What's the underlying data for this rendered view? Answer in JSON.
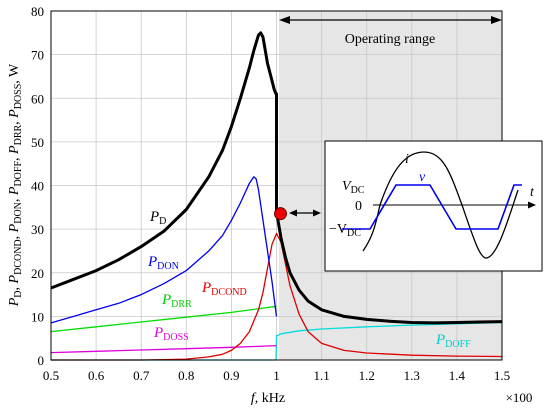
{
  "chart_data": {
    "type": "line",
    "xlabel": {
      "var": "f",
      "unit": ", kHz"
    },
    "xscale_note": "×100",
    "ylabel": {
      "prefix": "P",
      "sub1": "D",
      "sub2": "DCOND",
      "sub3": "DON",
      "sub4": "DOFF",
      "sub5": "DRR",
      "sub6": "DOSS",
      "unit": "W"
    },
    "xlim": [
      0.5,
      1.5
    ],
    "ylim": [
      0,
      80
    ],
    "xticks": [
      "0.5",
      "0.6",
      "0.7",
      "0.8",
      "0.9",
      "1",
      "1.1",
      "1.2",
      "1.3",
      "1.4",
      "1.5"
    ],
    "yticks": [
      "0",
      "10",
      "20",
      "30",
      "40",
      "50",
      "60",
      "70",
      "80"
    ],
    "grid": true,
    "shaded_region": {
      "x": [
        1.0,
        1.5
      ],
      "label": "Operating range"
    },
    "operating_point": {
      "x": 1.0,
      "y": 34
    },
    "series": [
      {
        "name": "P",
        "sub": "D",
        "color": "#000000",
        "x": [
          0.5,
          0.55,
          0.6,
          0.65,
          0.7,
          0.75,
          0.8,
          0.85,
          0.88,
          0.9,
          0.92,
          0.94,
          0.95,
          0.96,
          0.965,
          0.97,
          0.98,
          0.99,
          0.995,
          0.999,
          1.0,
          1.0,
          1.01,
          1.02,
          1.03,
          1.05,
          1.07,
          1.1,
          1.15,
          1.2,
          1.25,
          1.3,
          1.35,
          1.4,
          1.45,
          1.5
        ],
        "y": [
          16.5,
          18.5,
          20.5,
          23,
          26,
          29.5,
          34.5,
          42,
          48,
          53.5,
          60,
          67,
          71,
          74.5,
          75,
          74,
          68,
          64,
          62,
          61,
          61,
          34,
          28,
          23.5,
          20,
          16,
          13.5,
          11.5,
          10,
          9.3,
          8.9,
          8.6,
          8.5,
          8.6,
          8.7,
          8.8
        ]
      },
      {
        "name": "P",
        "sub": "DON",
        "color": "#0000ee",
        "x": [
          0.5,
          0.55,
          0.6,
          0.65,
          0.7,
          0.75,
          0.8,
          0.85,
          0.88,
          0.9,
          0.92,
          0.94,
          0.95,
          0.955,
          0.96,
          0.97,
          0.98,
          0.99,
          1.0
        ],
        "y": [
          8.5,
          10,
          11.5,
          13,
          15,
          17.5,
          20.5,
          25,
          28.5,
          32,
          36,
          40.5,
          42,
          41.5,
          39,
          32,
          25,
          18,
          10
        ]
      },
      {
        "name": "P",
        "sub": "DCOND",
        "color": "#dd0000",
        "x": [
          0.5,
          0.6,
          0.7,
          0.75,
          0.8,
          0.85,
          0.88,
          0.9,
          0.92,
          0.94,
          0.96,
          0.97,
          0.98,
          0.99,
          1.0,
          1.01,
          1.02,
          1.03,
          1.05,
          1.07,
          1.1,
          1.15,
          1.2,
          1.3,
          1.4,
          1.5
        ],
        "y": [
          0,
          0,
          0,
          0.1,
          0.2,
          0.7,
          1.3,
          2.2,
          3.8,
          6.5,
          11.5,
          15.5,
          21,
          26.5,
          29,
          27,
          22,
          17,
          10.5,
          6.5,
          3.8,
          2.2,
          1.6,
          1.1,
          0.9,
          0.8
        ]
      },
      {
        "name": "P",
        "sub": "DRR",
        "color": "#00dd00",
        "x": [
          0.5,
          0.6,
          0.7,
          0.8,
          0.9,
          0.95,
          1.0
        ],
        "y": [
          6.5,
          7.6,
          8.7,
          9.8,
          10.9,
          11.6,
          12.3
        ]
      },
      {
        "name": "P",
        "sub": "DOSS",
        "color": "#dd00dd",
        "x": [
          0.5,
          0.6,
          0.7,
          0.8,
          0.9,
          0.95,
          1.0
        ],
        "y": [
          1.7,
          2.0,
          2.3,
          2.6,
          2.9,
          3.1,
          3.3
        ]
      },
      {
        "name": "P",
        "sub": "DOFF",
        "color": "#00dddd",
        "x": [
          0.5,
          0.7,
          0.9,
          0.999,
          1.0,
          1.01,
          1.05,
          1.1,
          1.2,
          1.3,
          1.4,
          1.5
        ],
        "y": [
          0,
          0,
          0,
          0,
          5.5,
          6,
          6.7,
          7.1,
          7.6,
          8.0,
          8.3,
          8.6
        ]
      }
    ]
  },
  "inset": {
    "labels": {
      "i": "i",
      "v": "v",
      "t": "t",
      "zero": "0",
      "vdc": "V",
      "vdc_sub": "DC",
      "neg_vdc": "−V",
      "neg_vdc_sub": "DC"
    }
  }
}
